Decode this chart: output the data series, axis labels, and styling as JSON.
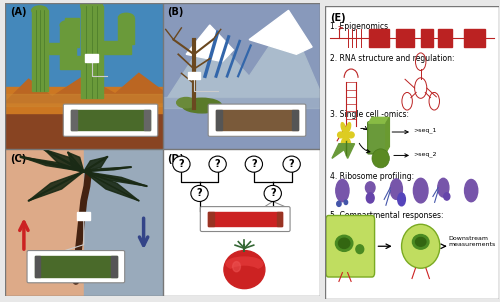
{
  "panel_labels": [
    "(A)",
    "(B)",
    "(C)",
    "(D)",
    "(E)"
  ],
  "colors": {
    "sky_A": "#4488bb",
    "ground_A_top": "#cc7722",
    "ground_A_bot": "#995511",
    "hill_A": "#bb6622",
    "cactus": "#6a9a3a",
    "cactus_dark": "#4a7a2a",
    "sky_B": "#99aacc",
    "mountain_B": "#aabbcc",
    "snow_B": "#ffffff",
    "blue_streak": "#4477aa",
    "ground_B": "#8899bb",
    "tree_B": "#7a5a30",
    "bush_B": "#6a7a3a",
    "bg_C_left": "#ddaa88",
    "bg_C_right": "#99aabb",
    "palm_trunk": "#442211",
    "palm_leaf": "#1a2a1a",
    "arrow_up": "#cc2222",
    "arrow_down": "#334488",
    "bar_green": "#4a6a2a",
    "bar_brown": "#7a5a3a",
    "bar_red": "#cc2222",
    "callout_edge": "#888888",
    "tree_line": "#333333",
    "tomato_red": "#cc2222",
    "tomato_light": "#ee4444",
    "tomato_green": "#336633",
    "red": "#bb2222",
    "green": "#6a9a3a",
    "green_dark": "#4a7a1a",
    "purple": "#7755aa",
    "yellow_flower": "#ddcc22",
    "cell_green": "#aacc44",
    "cell_dark": "#4a7a1a",
    "border": "#aaaaaa",
    "white": "#ffffff"
  }
}
